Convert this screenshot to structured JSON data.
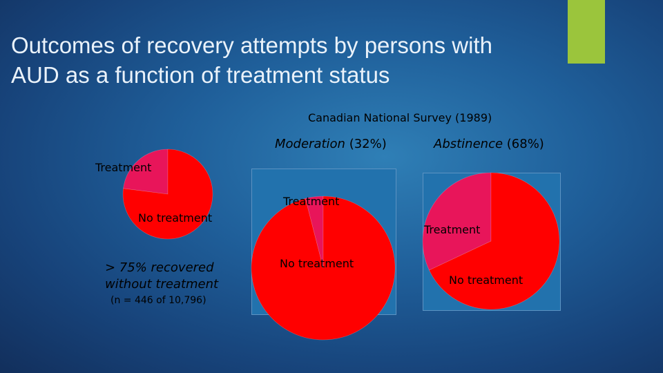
{
  "slide": {
    "title_line1": "Outcomes of recovery attempts by persons with",
    "title_line2": "AUD as a function of treatment status",
    "accent_color": "#9bc53c",
    "subtitle": "Canadian National Survey (1989)",
    "moderation_label": {
      "name": "Moderation",
      "pct": "(32%)"
    },
    "abstinence_label": {
      "name": "Abstinence",
      "pct": "(68%)"
    },
    "recovered_line1": "> 75% recovered",
    "recovered_line2": "without treatment",
    "sample_note": "(n = 446 of 10,796)"
  },
  "colors": {
    "treatment": "#e8155a",
    "no_treatment": "#ff0000"
  },
  "chart_data": [
    {
      "type": "pie",
      "title": "",
      "categories": [
        "Treatment",
        "No treatment"
      ],
      "values": [
        23,
        77
      ]
    },
    {
      "type": "pie",
      "title": "Moderation (32%)",
      "categories": [
        "Treatment",
        "No treatment"
      ],
      "values": [
        4,
        96
      ]
    },
    {
      "type": "pie",
      "title": "Abstinence (68%)",
      "categories": [
        "Treatment",
        "No treatment"
      ],
      "values": [
        32,
        68
      ]
    }
  ]
}
